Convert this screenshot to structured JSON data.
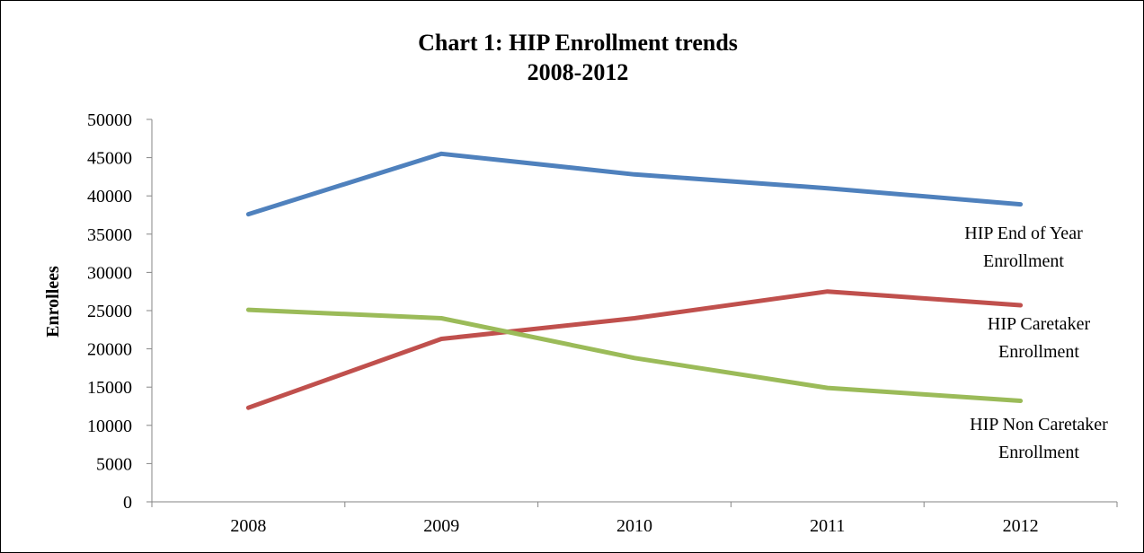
{
  "chart_data": {
    "type": "line",
    "title": [
      "Chart 1: HIP Enrollment trends",
      "2008-2012"
    ],
    "xlabel": "",
    "ylabel": "Enrollees",
    "categories": [
      "2008",
      "2009",
      "2010",
      "2011",
      "2012"
    ],
    "ylim": [
      0,
      50000
    ],
    "yticks": [
      0,
      5000,
      10000,
      15000,
      20000,
      25000,
      30000,
      35000,
      40000,
      45000,
      50000
    ],
    "grid": false,
    "legend": "none",
    "series": [
      {
        "name": [
          "HIP End of Year",
          "Enrollment"
        ],
        "color": "#4f81bd",
        "values": [
          37600,
          45500,
          42800,
          41000,
          38900
        ]
      },
      {
        "name": [
          "HIP Caretaker",
          "Enrollment"
        ],
        "color": "#c0504d",
        "values": [
          12300,
          21300,
          24000,
          27500,
          25700
        ]
      },
      {
        "name": [
          "HIP Non Caretaker",
          "Enrollment"
        ],
        "color": "#9bbb59",
        "values": [
          25100,
          24000,
          18800,
          14900,
          13200
        ]
      }
    ]
  }
}
